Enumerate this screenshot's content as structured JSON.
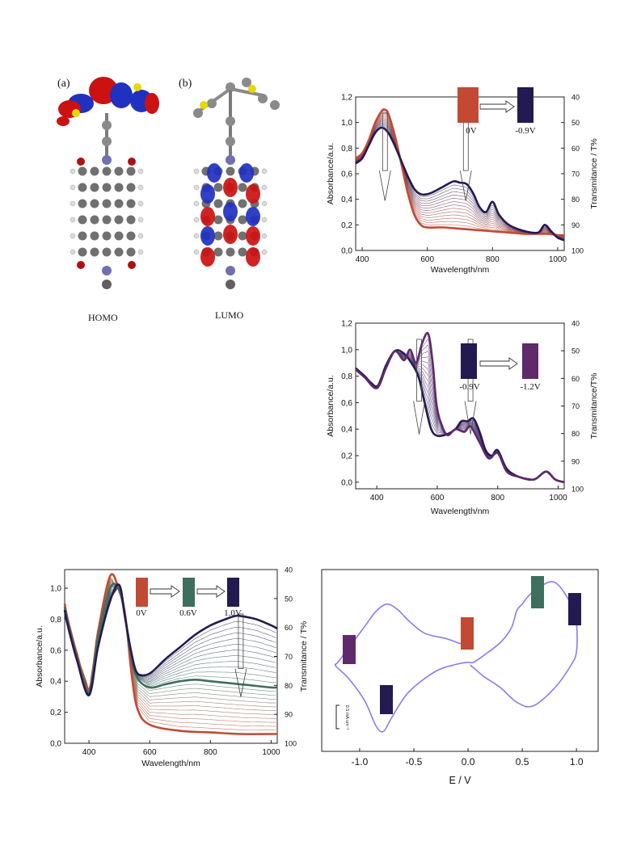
{
  "figure": {
    "panel_a_label": "(a)",
    "panel_b_label": "(b)",
    "homo_label": "HOMO",
    "lumo_label": "LUMO",
    "colors": {
      "oxidized_red": "#c24a32",
      "dark_navy": "#231a52",
      "green_state": "#3e6e5e",
      "purple_state": "#5e2a6a",
      "cv_line": "#8a7cf0",
      "orbital_red": "#cc1111",
      "orbital_blue": "#2030c0",
      "atom_grey": "#606060"
    }
  },
  "chart_data": [
    {
      "id": "spectro-top",
      "type": "line",
      "xlabel": "Wavelength/nm",
      "ylabel": "Absorbance/a.u.",
      "y2label": "Transmitance / T%",
      "xlim": [
        380,
        1020
      ],
      "ylim": [
        0,
        1.2
      ],
      "y2lim": [
        100,
        40
      ],
      "xticks": [
        400,
        600,
        800,
        1000
      ],
      "yticks": [
        "0,0",
        "0,2",
        "0,4",
        "0,6",
        "0,8",
        "1,0",
        "1,2"
      ],
      "y2ticks": [
        "100",
        "90",
        "80",
        "70",
        "60",
        "50",
        "40"
      ],
      "swatches": [
        {
          "label": "0V",
          "color": "#c24a32"
        },
        {
          "label": "-0.9V",
          "color": "#231a52"
        }
      ],
      "series": [
        {
          "color": "#c24a32",
          "x": [
            380,
            400,
            420,
            440,
            460,
            470,
            480,
            500,
            520,
            540,
            560,
            580,
            600,
            650,
            700,
            750,
            800,
            850,
            900,
            950,
            970,
            1000,
            1020
          ],
          "y": [
            0.72,
            0.76,
            0.86,
            1.0,
            1.09,
            1.1,
            1.07,
            0.9,
            0.68,
            0.45,
            0.28,
            0.2,
            0.18,
            0.18,
            0.17,
            0.16,
            0.15,
            0.14,
            0.13,
            0.13,
            0.13,
            0.12,
            0.12
          ]
        },
        {
          "color": "#231a52",
          "x": [
            380,
            400,
            420,
            440,
            460,
            480,
            500,
            520,
            540,
            560,
            580,
            600,
            620,
            650,
            680,
            700,
            720,
            740,
            760,
            780,
            800,
            820,
            850,
            900,
            940,
            960,
            980,
            1000,
            1020
          ],
          "y": [
            0.68,
            0.72,
            0.82,
            0.92,
            0.96,
            0.92,
            0.82,
            0.7,
            0.58,
            0.48,
            0.44,
            0.44,
            0.46,
            0.5,
            0.54,
            0.53,
            0.52,
            0.45,
            0.34,
            0.3,
            0.38,
            0.28,
            0.2,
            0.15,
            0.14,
            0.2,
            0.15,
            0.1,
            0.08
          ]
        }
      ]
    },
    {
      "id": "spectro-mid",
      "type": "line",
      "xlabel": "Wavelength/nm",
      "ylabel": "Absorbance/a.u.",
      "y2label": "Transmitance/T%",
      "xlim": [
        330,
        1020
      ],
      "ylim": [
        -0.05,
        1.2
      ],
      "y2lim": [
        100,
        40
      ],
      "xticks": [
        400,
        600,
        800,
        1000
      ],
      "yticks": [
        "0,0",
        "0,2",
        "0,4",
        "0,6",
        "0,8",
        "1,0",
        "1,2"
      ],
      "y2ticks": [
        "100",
        "90",
        "80",
        "70",
        "60",
        "50",
        "40"
      ],
      "swatches": [
        {
          "label": "-0.9V",
          "color": "#231a52"
        },
        {
          "label": "-1.2V",
          "color": "#5e2a6a"
        }
      ],
      "series": [
        {
          "color": "#231a52",
          "x": [
            330,
            360,
            400,
            430,
            460,
            490,
            520,
            540,
            560,
            580,
            600,
            630,
            660,
            680,
            700,
            720,
            740,
            760,
            780,
            800,
            830,
            870,
            920,
            960,
            990,
            1020
          ],
          "y": [
            0.86,
            0.8,
            0.72,
            0.88,
            0.99,
            0.97,
            0.88,
            0.78,
            0.58,
            0.4,
            0.35,
            0.36,
            0.4,
            0.46,
            0.46,
            0.48,
            0.38,
            0.24,
            0.2,
            0.24,
            0.1,
            0.04,
            0.02,
            0.08,
            0.02,
            0.0
          ]
        },
        {
          "color": "#5e2a6a",
          "x": [
            330,
            360,
            400,
            430,
            460,
            490,
            510,
            530,
            550,
            570,
            585,
            600,
            630,
            660,
            690,
            710,
            740,
            770,
            800,
            830,
            870,
            920,
            960,
            990,
            1020
          ],
          "y": [
            0.85,
            0.79,
            0.71,
            0.86,
            0.99,
            0.92,
            1.0,
            0.9,
            1.05,
            1.12,
            0.9,
            0.55,
            0.36,
            0.4,
            0.38,
            0.42,
            0.3,
            0.18,
            0.22,
            0.08,
            0.04,
            0.02,
            0.08,
            0.02,
            0.0
          ]
        }
      ]
    },
    {
      "id": "spectro-bottom",
      "type": "line",
      "xlabel": "Wavelength/nm",
      "ylabel": "Absorbance/a.u.",
      "y2label": "Transmitance / T%",
      "xlim": [
        320,
        1020
      ],
      "ylim": [
        0,
        1.12
      ],
      "y2lim": [
        100,
        40
      ],
      "xticks": [
        400,
        600,
        800,
        1000
      ],
      "yticks": [
        "0,0",
        "0,2",
        "0,4",
        "0,6",
        "0,8",
        "1,0"
      ],
      "y2ticks": [
        "100",
        "90",
        "80",
        "70",
        "60",
        "50",
        "40"
      ],
      "swatches": [
        {
          "label": "0V",
          "color": "#c24a32"
        },
        {
          "label": "0.6V",
          "color": "#3e6e5e"
        },
        {
          "label": "1.0V",
          "color": "#231a52"
        }
      ],
      "series": [
        {
          "color": "#c24a32",
          "x": [
            320,
            330,
            360,
            400,
            430,
            470,
            500,
            520,
            540,
            560,
            600,
            700,
            800,
            900,
            1000,
            1020
          ],
          "y": [
            0.9,
            0.8,
            0.58,
            0.35,
            0.72,
            1.08,
            0.98,
            0.82,
            0.45,
            0.22,
            0.12,
            0.08,
            0.07,
            0.06,
            0.06,
            0.06
          ]
        },
        {
          "color": "#3e6e5e",
          "x": [
            320,
            330,
            360,
            400,
            430,
            470,
            500,
            520,
            540,
            560,
            600,
            650,
            700,
            750,
            800,
            850,
            900,
            950,
            1000,
            1020
          ],
          "y": [
            0.88,
            0.78,
            0.56,
            0.33,
            0.68,
            1.0,
            0.99,
            0.8,
            0.55,
            0.42,
            0.36,
            0.38,
            0.4,
            0.41,
            0.4,
            0.39,
            0.38,
            0.37,
            0.36,
            0.36
          ]
        },
        {
          "color": "#231a52",
          "x": [
            320,
            330,
            360,
            400,
            430,
            470,
            500,
            520,
            540,
            560,
            600,
            650,
            700,
            750,
            800,
            850,
            880,
            900,
            950,
            1000,
            1020
          ],
          "y": [
            0.86,
            0.76,
            0.54,
            0.31,
            0.62,
            0.92,
            1.02,
            0.8,
            0.58,
            0.45,
            0.45,
            0.54,
            0.62,
            0.7,
            0.76,
            0.8,
            0.82,
            0.82,
            0.8,
            0.76,
            0.74
          ]
        }
      ]
    },
    {
      "id": "cv",
      "type": "line",
      "xlabel": "E / V",
      "xlim": [
        -1.35,
        1.2
      ],
      "ylim": [
        -1.0,
        1.0
      ],
      "xticks": [
        "-1.0",
        "-0.5",
        "0.0",
        "0.5",
        "1.0"
      ],
      "scale_label": "0.5 mA cm⁻²",
      "series": [
        {
          "color": "#8a7cf0",
          "x": [
            0.05,
            -0.05,
            -0.2,
            -0.4,
            -0.55,
            -0.65,
            -0.75,
            -0.85,
            -0.95,
            -1.1,
            -1.2,
            -1.22,
            -1.1,
            -0.95,
            -0.85,
            -0.78,
            -0.7,
            -0.55,
            -0.3,
            -0.1,
            0.0,
            0.05,
            0.15,
            0.3,
            0.4,
            0.45,
            0.5,
            0.55,
            0.65,
            0.8,
            0.95,
            1.0,
            1.0,
            0.95,
            0.8,
            0.6,
            0.45,
            0.3,
            0.15,
            0.05,
            0.02
          ],
          "y": [
            0.2,
            0.18,
            0.24,
            0.3,
            0.44,
            0.56,
            0.62,
            0.54,
            0.38,
            0.14,
            -0.02,
            -0.06,
            -0.2,
            -0.45,
            -0.72,
            -0.78,
            -0.62,
            -0.35,
            -0.12,
            -0.04,
            -0.02,
            -0.02,
            0.06,
            0.2,
            0.36,
            0.55,
            0.62,
            0.7,
            0.8,
            0.86,
            0.62,
            0.4,
            0.1,
            -0.05,
            -0.3,
            -0.5,
            -0.46,
            -0.3,
            -0.18,
            -0.08,
            -0.05
          ]
        }
      ],
      "swatches": [
        {
          "color": "#5e2a6a"
        },
        {
          "color": "#231a52"
        },
        {
          "color": "#c24a32"
        },
        {
          "color": "#3e6e5e"
        },
        {
          "color": "#231a52"
        }
      ]
    }
  ]
}
